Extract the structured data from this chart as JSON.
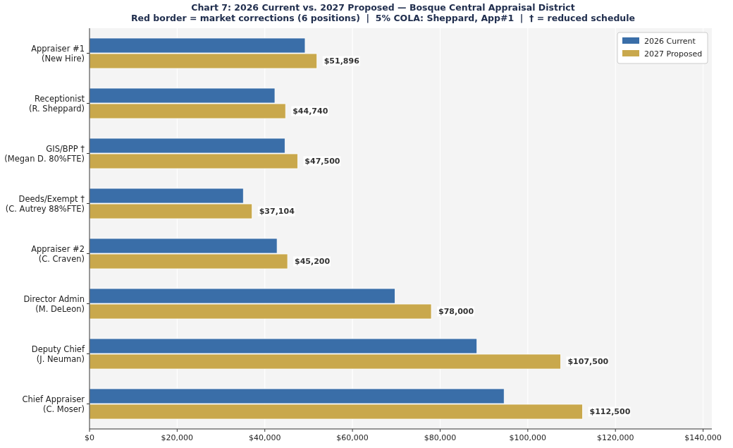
{
  "chart_data": {
    "type": "bar",
    "orientation": "horizontal",
    "title": "Chart 7: 2026 Current vs. 2027 Proposed — Bosque Central Appraisal District",
    "subtitle": "Red border = market corrections (6 positions)  |  5% COLA: Sheppard, App#1  |  † = reduced schedule",
    "categories": [
      "Appraiser #1\n(New Hire)",
      "Receptionist\n(R. Sheppard)",
      "GIS/BPP †\n(Megan D. 80%FTE)",
      "Deeds/Exempt †\n(C. Autrey 88%FTE)",
      "Appraiser #2\n(C. Craven)",
      "Director Admin\n(M. DeLeon)",
      "Deputy Chief\n(J. Neuman)",
      "Chief Appraiser\n(C. Moser)"
    ],
    "series": [
      {
        "name": "2026 Current",
        "color": "#3a6ea8",
        "values": [
          49200,
          42300,
          44600,
          35100,
          42800,
          69700,
          88400,
          94600
        ]
      },
      {
        "name": "2027 Proposed",
        "color": "#c9a84c",
        "values": [
          51896,
          44740,
          47500,
          37104,
          45200,
          78000,
          107500,
          112500
        ],
        "value_labels": [
          "$51,896",
          "$44,740",
          "$47,500",
          "$37,104",
          "$45,200",
          "$78,000",
          "$107,500",
          "$112,500"
        ]
      }
    ],
    "xlim": [
      0,
      142000
    ],
    "xticks": [
      {
        "value": 0,
        "label": "$0"
      },
      {
        "value": 20000,
        "label": "$20,000"
      },
      {
        "value": 40000,
        "label": "$40,000"
      },
      {
        "value": 60000,
        "label": "$60,000"
      },
      {
        "value": 80000,
        "label": "$80,000"
      },
      {
        "value": 100000,
        "label": "$100,000"
      },
      {
        "value": 120000,
        "label": "$120,000"
      },
      {
        "value": 140000,
        "label": "$140,000"
      }
    ],
    "grid": "x",
    "legend": "top right"
  }
}
